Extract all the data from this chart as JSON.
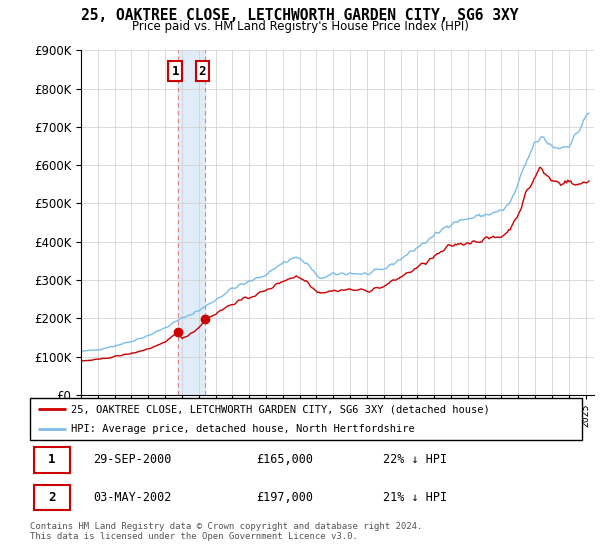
{
  "title": "25, OAKTREE CLOSE, LETCHWORTH GARDEN CITY, SG6 3XY",
  "subtitle": "Price paid vs. HM Land Registry's House Price Index (HPI)",
  "legend_line1": "25, OAKTREE CLOSE, LETCHWORTH GARDEN CITY, SG6 3XY (detached house)",
  "legend_line2": "HPI: Average price, detached house, North Hertfordshire",
  "footnote": "Contains HM Land Registry data © Crown copyright and database right 2024.\nThis data is licensed under the Open Government Licence v3.0.",
  "purchase1_date": "29-SEP-2000",
  "purchase1_price": "£165,000",
  "purchase1_hpi": "22% ↓ HPI",
  "purchase2_date": "03-MAY-2002",
  "purchase2_price": "£197,000",
  "purchase2_hpi": "21% ↓ HPI",
  "purchase1_year": 2000.75,
  "purchase2_year": 2002.37,
  "purchase1_value": 165000,
  "purchase2_value": 197000,
  "hpi_color": "#7bbde8",
  "price_color": "#cc0000",
  "shading_color": "#e0edf8",
  "ylim": [
    0,
    900000
  ],
  "yticks": [
    0,
    100000,
    200000,
    300000,
    400000,
    500000,
    600000,
    700000,
    800000,
    900000
  ],
  "xmin": 1995.0,
  "xmax": 2025.5
}
